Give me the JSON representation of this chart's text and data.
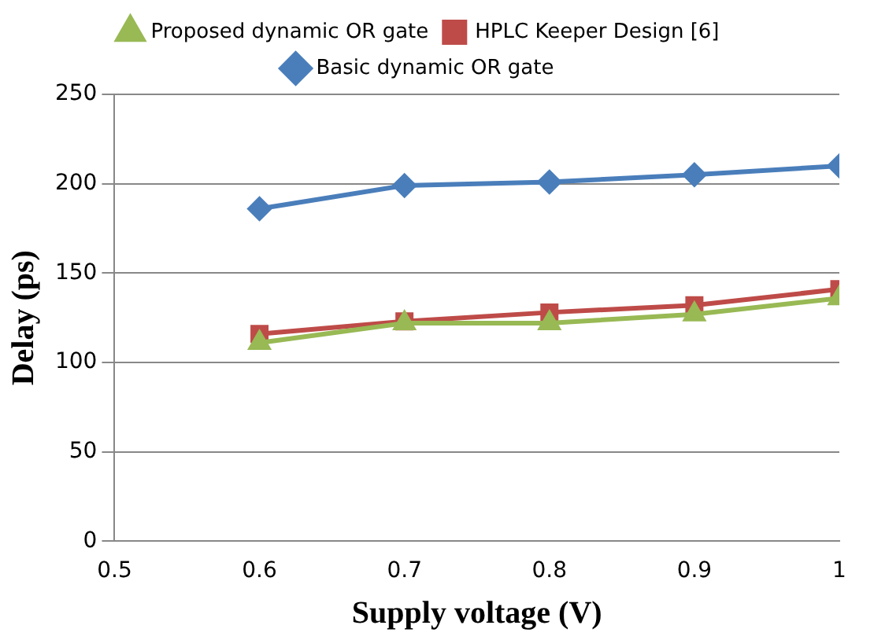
{
  "chart_data": {
    "type": "line",
    "xlabel": "Supply voltage (V)",
    "ylabel": "Delay (ps)",
    "x": [
      0.6,
      0.7,
      0.8,
      0.9,
      1.0
    ],
    "series": [
      {
        "name": "Basic dynamic OR gate",
        "color": "#4a7ebb",
        "marker": "diamond",
        "values": [
          186,
          199,
          201,
          205,
          210
        ]
      },
      {
        "name": "HPLC Keeper Design [6]",
        "color": "#be4b48",
        "marker": "square",
        "values": [
          116,
          123,
          128,
          132,
          141
        ]
      },
      {
        "name": "Proposed dynamic OR gate",
        "color": "#98b954",
        "marker": "triangle",
        "values": [
          111,
          122,
          122,
          127,
          136
        ]
      }
    ],
    "xlim": [
      0.5,
      1.0
    ],
    "xticks": [
      0.5,
      0.6,
      0.7,
      0.8,
      0.9,
      {
        "value": 1.0,
        "label": "1"
      }
    ],
    "ylim": [
      0,
      250
    ],
    "yticks": [
      0,
      50,
      100,
      150,
      200,
      250
    ],
    "grid": "y",
    "legend": "top"
  }
}
